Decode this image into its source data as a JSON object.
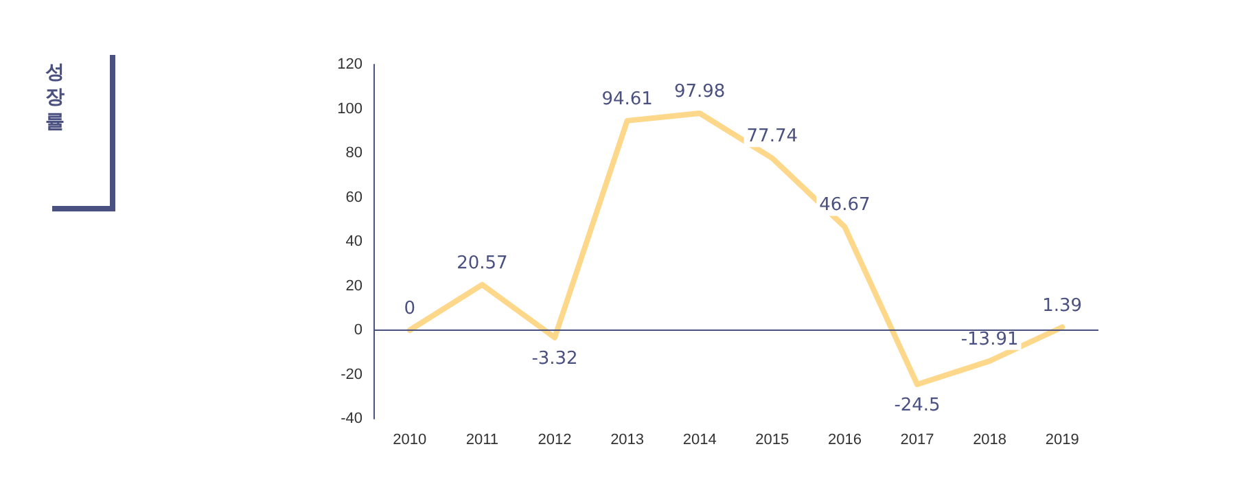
{
  "chart_data": {
    "type": "line",
    "annotations": [
      "성장률"
    ],
    "categories": [
      "2010",
      "2011",
      "2012",
      "2013",
      "2014",
      "2015",
      "2016",
      "2017",
      "2018",
      "2019"
    ],
    "series": [
      {
        "color": "#fdd78a",
        "values": [
          0,
          20.57,
          -3.32,
          94.61,
          97.98,
          77.74,
          46.67,
          -24.5,
          -13.91,
          1.39
        ]
      }
    ],
    "ylim": [
      -40,
      120
    ],
    "yticks": [
      -40,
      -20,
      0,
      20,
      40,
      60,
      80,
      100,
      120
    ],
    "ref_lines": [
      {
        "axis": "y",
        "value": 0,
        "color": "#4a5080"
      }
    ],
    "data_labels": true,
    "grid": false,
    "marker": "none"
  }
}
